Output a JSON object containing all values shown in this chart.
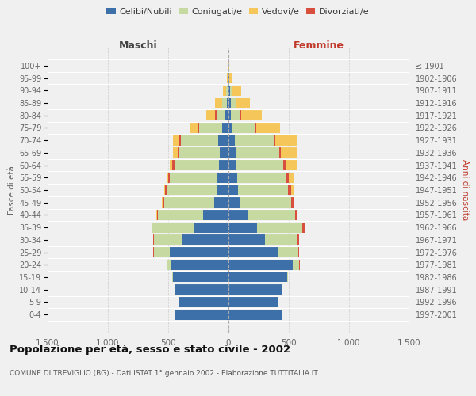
{
  "age_groups": [
    "0-4",
    "5-9",
    "10-14",
    "15-19",
    "20-24",
    "25-29",
    "30-34",
    "35-39",
    "40-44",
    "45-49",
    "50-54",
    "55-59",
    "60-64",
    "65-69",
    "70-74",
    "75-79",
    "80-84",
    "85-89",
    "90-94",
    "95-99",
    "100+"
  ],
  "birth_years": [
    "1997-2001",
    "1992-1996",
    "1987-1991",
    "1982-1986",
    "1977-1981",
    "1972-1976",
    "1967-1971",
    "1962-1966",
    "1957-1961",
    "1952-1956",
    "1947-1951",
    "1942-1946",
    "1937-1941",
    "1932-1936",
    "1927-1931",
    "1922-1926",
    "1917-1921",
    "1912-1916",
    "1907-1911",
    "1902-1906",
    "≤ 1901"
  ],
  "colors": {
    "celibi": "#3d6fa8",
    "coniugati": "#c5d9a0",
    "vedovi": "#f5c75a",
    "divorziati": "#d94f3d"
  },
  "males": {
    "celibi": [
      440,
      415,
      440,
      460,
      480,
      490,
      390,
      290,
      210,
      120,
      95,
      90,
      80,
      75,
      85,
      50,
      25,
      15,
      8,
      3,
      1
    ],
    "coniugati": [
      0,
      0,
      2,
      4,
      28,
      130,
      230,
      340,
      375,
      415,
      415,
      395,
      370,
      330,
      310,
      195,
      75,
      35,
      12,
      4,
      1
    ],
    "vedovi": [
      0,
      0,
      0,
      0,
      0,
      1,
      1,
      2,
      3,
      4,
      5,
      10,
      18,
      38,
      48,
      65,
      75,
      55,
      25,
      8,
      1
    ],
    "divorziati": [
      0,
      0,
      0,
      0,
      1,
      3,
      5,
      5,
      10,
      14,
      18,
      18,
      20,
      18,
      15,
      10,
      10,
      5,
      2,
      0,
      0
    ]
  },
  "females": {
    "celibi": [
      440,
      415,
      440,
      490,
      530,
      415,
      300,
      240,
      155,
      95,
      78,
      72,
      68,
      60,
      50,
      30,
      20,
      18,
      12,
      4,
      1
    ],
    "coniugati": [
      0,
      0,
      2,
      4,
      58,
      165,
      275,
      370,
      400,
      425,
      415,
      405,
      385,
      360,
      330,
      195,
      75,
      38,
      18,
      4,
      1
    ],
    "vedovi": [
      0,
      0,
      0,
      0,
      0,
      1,
      1,
      2,
      5,
      9,
      18,
      48,
      88,
      135,
      175,
      195,
      175,
      115,
      75,
      28,
      4
    ],
    "divorziati": [
      0,
      0,
      0,
      0,
      2,
      5,
      10,
      28,
      14,
      18,
      28,
      24,
      30,
      12,
      10,
      8,
      7,
      4,
      2,
      0,
      0
    ]
  },
  "title": "Popolazione per età, sesso e stato civile - 2002",
  "subtitle": "COMUNE DI TREVIGLIO (BG) - Dati ISTAT 1° gennaio 2002 - Elaborazione TUTTITALIA.IT",
  "xlabel_left": "Maschi",
  "xlabel_right": "Femmine",
  "ylabel_left": "Fasce di età",
  "ylabel_right": "Anni di nascita",
  "xlim": 1500,
  "xticks": [
    -1500,
    -1000,
    -500,
    0,
    500,
    1000,
    1500
  ],
  "xtick_labels": [
    "1.500",
    "1.000",
    "500",
    "0",
    "500",
    "1.000",
    "1.500"
  ],
  "bg_color": "#f0f0f0",
  "legend_labels": [
    "Celibi/Nubili",
    "Coniugati/e",
    "Vedovi/e",
    "Divorziati/e"
  ]
}
